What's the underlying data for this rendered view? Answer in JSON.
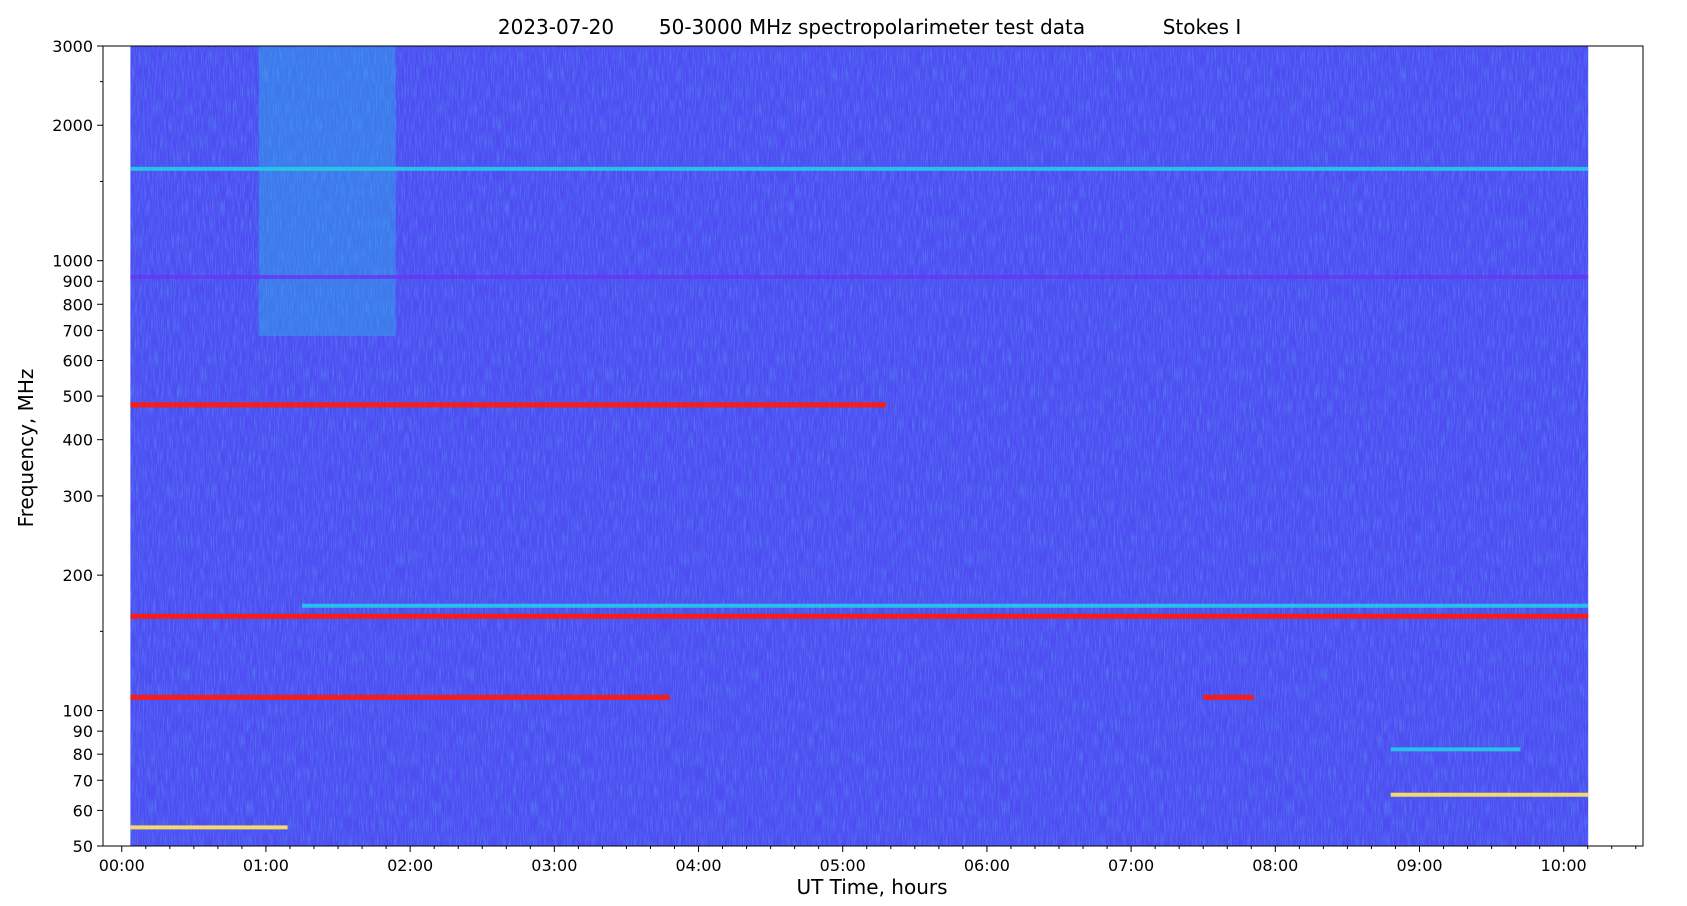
{
  "chart_data": {
    "type": "heatmap",
    "title_parts": {
      "date": "2023-07-20",
      "description": "50-3000 MHz spectropolarimeter test data",
      "parameter": "Stokes I"
    },
    "xlabel": "UT Time, hours",
    "ylabel": "Frequency, MHz",
    "x_scale": "linear",
    "y_scale": "log",
    "xlim_hours": [
      -0.13,
      10.55
    ],
    "ylim_mhz": [
      50,
      3000
    ],
    "data_time_range_hours": [
      0.06,
      10.17
    ],
    "x_ticks": [
      {
        "value": 0,
        "label": "00:00"
      },
      {
        "value": 1,
        "label": "01:00"
      },
      {
        "value": 2,
        "label": "02:00"
      },
      {
        "value": 3,
        "label": "03:00"
      },
      {
        "value": 4,
        "label": "04:00"
      },
      {
        "value": 5,
        "label": "05:00"
      },
      {
        "value": 6,
        "label": "06:00"
      },
      {
        "value": 7,
        "label": "07:00"
      },
      {
        "value": 8,
        "label": "08:00"
      },
      {
        "value": 9,
        "label": "09:00"
      },
      {
        "value": 10,
        "label": "10:00"
      }
    ],
    "y_ticks": [
      {
        "value": 50,
        "label": "50"
      },
      {
        "value": 60,
        "label": "60"
      },
      {
        "value": 70,
        "label": "70"
      },
      {
        "value": 80,
        "label": "80"
      },
      {
        "value": 90,
        "label": "90"
      },
      {
        "value": 100,
        "label": "100"
      },
      {
        "value": 200,
        "label": "200"
      },
      {
        "value": 300,
        "label": "300"
      },
      {
        "value": 400,
        "label": "400"
      },
      {
        "value": 500,
        "label": "500"
      },
      {
        "value": 600,
        "label": "600"
      },
      {
        "value": 700,
        "label": "700"
      },
      {
        "value": 800,
        "label": "800"
      },
      {
        "value": 900,
        "label": "900"
      },
      {
        "value": 1000,
        "label": "1000"
      },
      {
        "value": 2000,
        "label": "2000"
      },
      {
        "value": 3000,
        "label": "3000"
      }
    ],
    "colormap": "rainbow",
    "colors": {
      "background": "#4d4df2",
      "low": "#6a35f0",
      "mid": "#26c6e6",
      "high": "#ff1a0a",
      "mid_high": "#ffe060"
    },
    "features": [
      {
        "name": "broadband burst",
        "t_start": 0.95,
        "t_end": 1.9,
        "f_min": 680,
        "f_max": 3000
      },
      {
        "name": "strong band",
        "freq": 162,
        "t_start": 0.06,
        "t_end": 10.17,
        "level": "high"
      },
      {
        "name": "band",
        "freq": 171,
        "t_start": 1.25,
        "t_end": 10.17,
        "level": "mid"
      },
      {
        "name": "band",
        "freq": 107,
        "t_start": 0.06,
        "t_end": 3.8,
        "level": "high"
      },
      {
        "name": "band",
        "freq": 107,
        "t_start": 7.5,
        "t_end": 7.85,
        "level": "high"
      },
      {
        "name": "band",
        "freq": 478,
        "t_start": 0.06,
        "t_end": 5.3,
        "level": "high"
      },
      {
        "name": "band",
        "freq": 920,
        "t_start": 0.06,
        "t_end": 10.17,
        "level": "low"
      },
      {
        "name": "band",
        "freq": 55,
        "t_start": 0.06,
        "t_end": 1.15,
        "level": "mid_high"
      },
      {
        "name": "band",
        "freq": 65,
        "t_start": 8.8,
        "t_end": 10.17,
        "level": "mid_high"
      },
      {
        "name": "band",
        "freq": 82,
        "t_start": 8.8,
        "t_end": 9.7,
        "level": "mid"
      },
      {
        "name": "band",
        "freq": 1600,
        "t_start": 0.06,
        "t_end": 10.17,
        "level": "mid"
      }
    ]
  }
}
